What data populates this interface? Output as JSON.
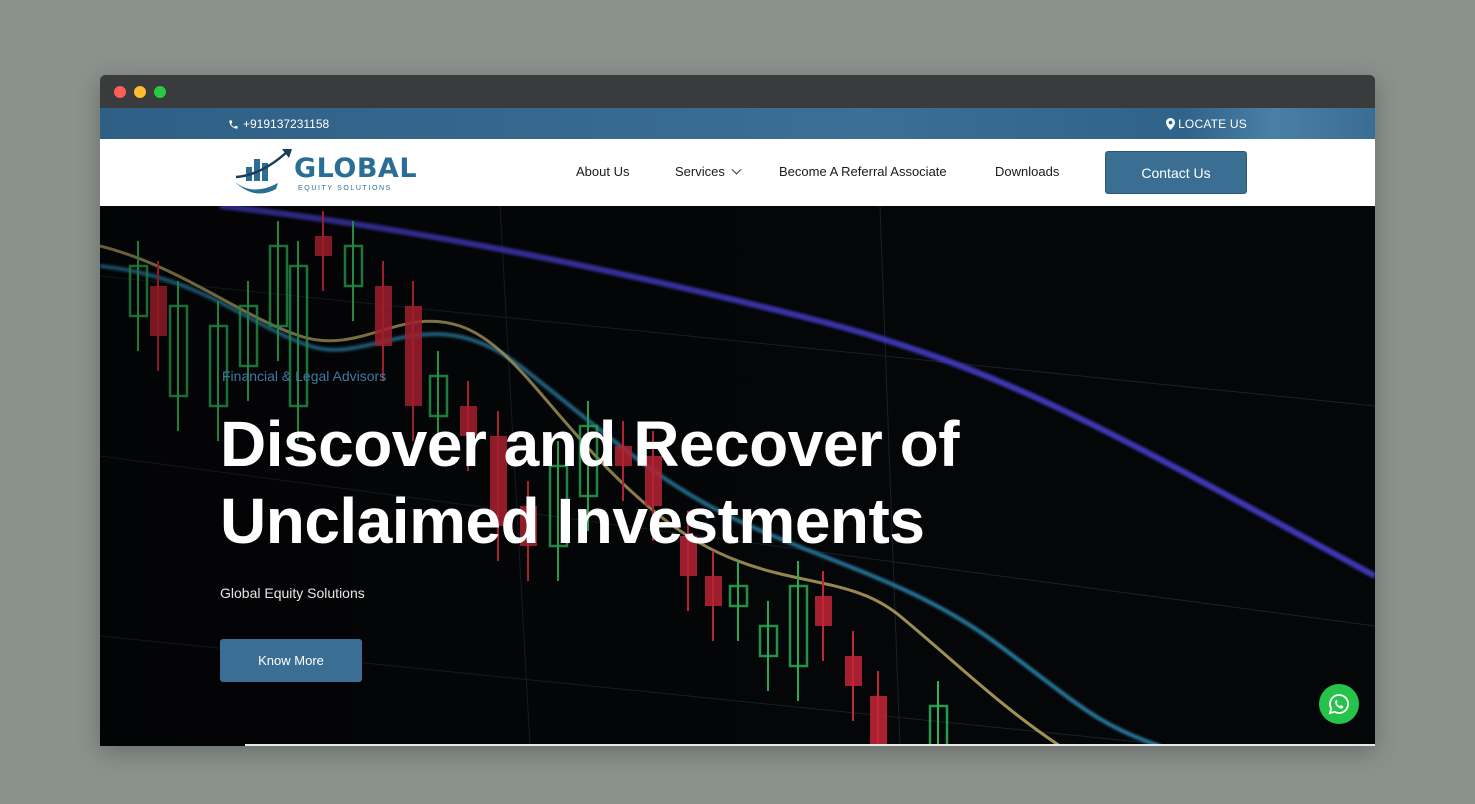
{
  "topbar": {
    "phone": "+919137231158",
    "locate": "LOCATE US",
    "phone_icon": "phone-icon",
    "locate_icon": "map-pin-icon"
  },
  "brand": {
    "name": "GLOBAL",
    "tagline": "EQUITY SOLUTIONS"
  },
  "nav": {
    "items": [
      {
        "label": "About Us"
      },
      {
        "label": "Services"
      },
      {
        "label": "Become A Referral Associate"
      },
      {
        "label": "Downloads"
      }
    ],
    "contact_label": "Contact Us"
  },
  "hero": {
    "eyebrow": "Financial & Legal Advisors",
    "headline_line1": "Discover and Recover of",
    "headline_line2": "Unclaimed Investments",
    "subtext": "Global Equity Solutions",
    "cta_label": "Know More"
  },
  "colors": {
    "accent": "#3a6f93",
    "topbar": "#2f5f85",
    "whatsapp": "#26c34a"
  }
}
